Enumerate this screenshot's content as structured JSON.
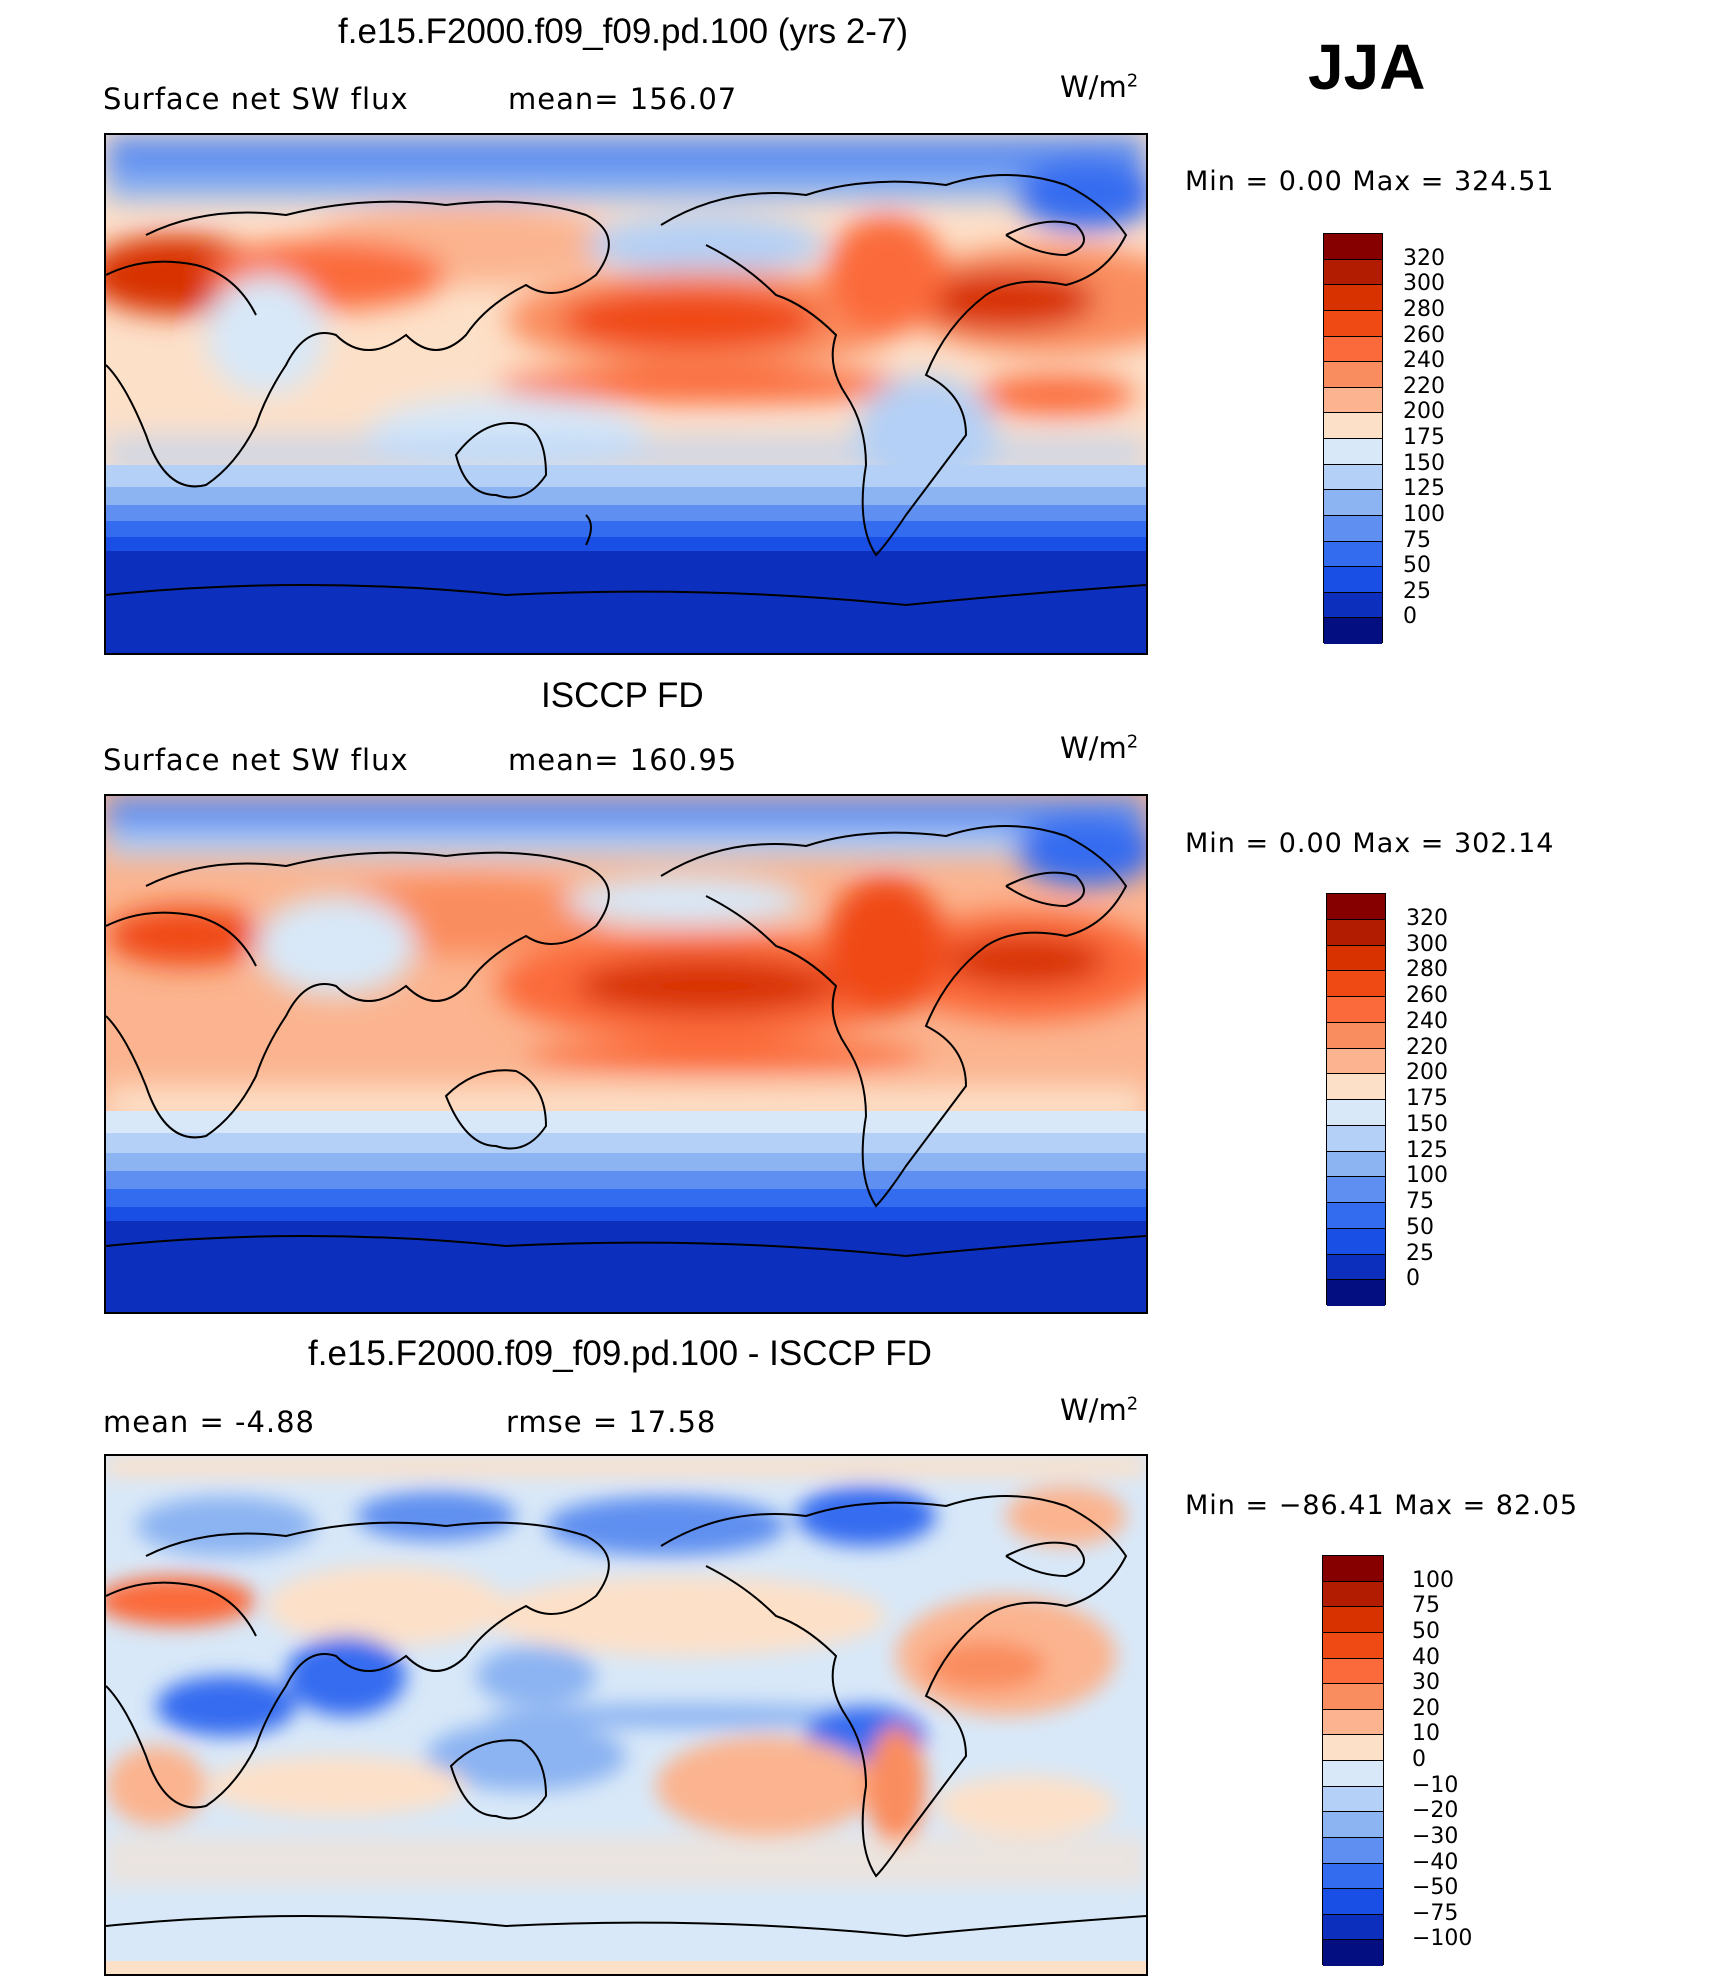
{
  "season": "JJA",
  "units_base": "W/m",
  "units_exp": "2",
  "panels": [
    {
      "title": "f.e15.F2000.f09_f09.pd.100 (yrs 2-7)",
      "left_label": "Surface net SW flux",
      "right_label": "mean= 156.07",
      "minmax": "Min =    0.00 Max = 324.51"
    },
    {
      "title": "ISCCP FD",
      "left_label": "Surface net SW flux",
      "right_label": "mean= 160.95",
      "minmax": "Min =    0.00 Max = 302.14"
    },
    {
      "title": "f.e15.F2000.f09_f09.pd.100 - ISCCP FD",
      "left_label": "mean =   -4.88",
      "right_label": "rmse =   17.58",
      "minmax": "Min = −86.41 Max =   82.05"
    }
  ],
  "colorbars": {
    "abs": {
      "levels": [
        "320",
        "300",
        "280",
        "260",
        "240",
        "220",
        "200",
        "175",
        "150",
        "125",
        "100",
        "75",
        "50",
        "25",
        "0"
      ],
      "colors": [
        "#870000",
        "#b21c00",
        "#d83200",
        "#f04a14",
        "#fb6a3a",
        "#fa8d5f",
        "#fbb48f",
        "#fde0c8",
        "#d8e8f8",
        "#b4d0f6",
        "#8cb4f2",
        "#5f8ff0",
        "#346cf0",
        "#1a4fe6",
        "#0c30bd",
        "#030e80"
      ]
    },
    "diff": {
      "levels": [
        "100",
        "75",
        "50",
        "40",
        "30",
        "20",
        "10",
        "0",
        "−10",
        "−20",
        "−30",
        "−40",
        "−50",
        "−75",
        "−100"
      ],
      "colors": [
        "#870000",
        "#b21c00",
        "#d83200",
        "#f04a14",
        "#fb6a3a",
        "#fa8d5f",
        "#fbb48f",
        "#fde0c8",
        "#d8e8f8",
        "#b4d0f6",
        "#8cb4f2",
        "#5f8ff0",
        "#346cf0",
        "#1a4fe6",
        "#0c30bd",
        "#030e80"
      ]
    }
  },
  "chart_data": [
    {
      "type": "heatmap",
      "title": "f.e15.F2000.f09_f09.pd.100 (yrs 2-7)",
      "variable": "Surface net SW flux",
      "units": "W/m2",
      "season": "JJA",
      "mean": 156.07,
      "min": 0.0,
      "max": 324.51,
      "contour_levels": [
        0,
        25,
        50,
        75,
        100,
        125,
        150,
        175,
        200,
        220,
        240,
        260,
        280,
        300,
        320
      ]
    },
    {
      "type": "heatmap",
      "title": "ISCCP FD",
      "variable": "Surface net SW flux",
      "units": "W/m2",
      "season": "JJA",
      "mean": 160.95,
      "min": 0.0,
      "max": 302.14,
      "contour_levels": [
        0,
        25,
        50,
        75,
        100,
        125,
        150,
        175,
        200,
        220,
        240,
        260,
        280,
        300,
        320
      ]
    },
    {
      "type": "heatmap",
      "title": "f.e15.F2000.f09_f09.pd.100 - ISCCP FD",
      "units": "W/m2",
      "season": "JJA",
      "mean": -4.88,
      "rmse": 17.58,
      "min": -86.41,
      "max": 82.05,
      "contour_levels": [
        -100,
        -75,
        -50,
        -40,
        -30,
        -20,
        -10,
        0,
        10,
        20,
        30,
        40,
        50,
        75,
        100
      ]
    }
  ]
}
